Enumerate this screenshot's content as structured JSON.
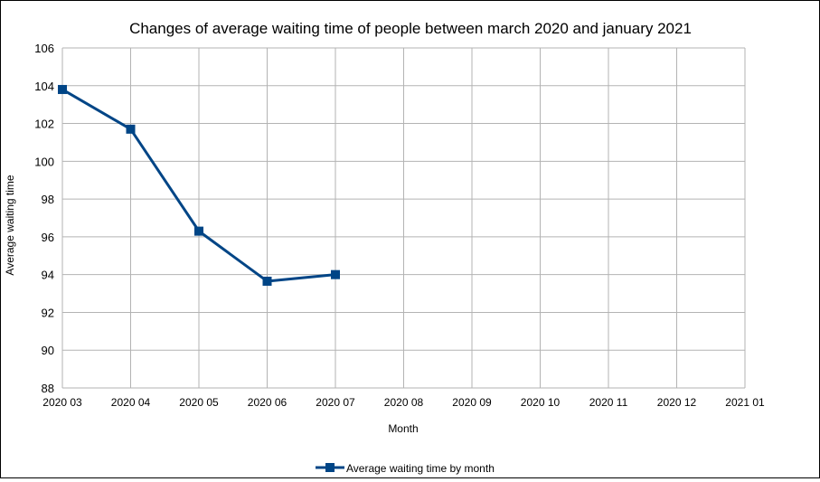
{
  "chart_data": {
    "type": "line",
    "title": "Changes of average waiting time of people between march 2020 and january 2021",
    "xlabel": "Month",
    "ylabel": "Average waiting time",
    "categories": [
      "2020 03",
      "2020 04",
      "2020 05",
      "2020 06",
      "2020 07",
      "2020 08",
      "2020 09",
      "2020 10",
      "2020 11",
      "2020 12",
      "2021 01"
    ],
    "series": [
      {
        "name": "Average waiting time by month",
        "values": [
          103.8,
          101.7,
          96.3,
          93.65,
          94.0,
          null,
          null,
          null,
          null,
          null,
          null
        ]
      }
    ],
    "ylim": [
      88,
      106
    ],
    "yticks": [
      88,
      90,
      92,
      94,
      96,
      98,
      100,
      102,
      104,
      106
    ],
    "grid": true,
    "legend_position": "bottom-center",
    "colors": {
      "series": "#004586",
      "grid": "#b3b3b3",
      "axis": "#b3b3b3",
      "text": "#000000"
    },
    "marker": "square"
  }
}
